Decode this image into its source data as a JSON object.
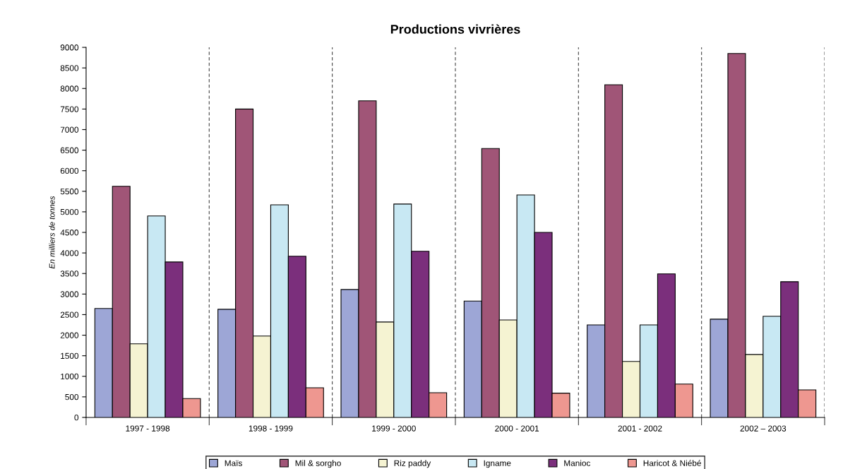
{
  "chart_data": {
    "type": "bar",
    "title": "Productions vivrières",
    "ylabel": "En milliers de tonnes",
    "categories": [
      "1997 - 1998",
      "1998 - 1999",
      "1999 - 2000",
      "2000 - 2001",
      "2001 - 2002",
      "2002 – 2003"
    ],
    "series": [
      {
        "name": "Maïs",
        "color": "#9da6d6",
        "values": [
          2650,
          2630,
          3110,
          2830,
          2250,
          2390
        ]
      },
      {
        "name": "Mil & sorgho",
        "color": "#a05577",
        "values": [
          5620,
          7500,
          7700,
          6540,
          8090,
          8850
        ]
      },
      {
        "name": "Riz paddy",
        "color": "#f5f3d2",
        "values": [
          1790,
          1980,
          2320,
          2370,
          1360,
          1530
        ]
      },
      {
        "name": "Igname",
        "color": "#c8e8f3",
        "values": [
          4900,
          5170,
          5190,
          5410,
          2250,
          2460
        ]
      },
      {
        "name": "Manioc",
        "color": "#7b2f7c",
        "values": [
          3780,
          3920,
          4040,
          4500,
          3490,
          3300
        ]
      },
      {
        "name": "Haricot & Niébé",
        "color": "#ee9790",
        "values": [
          460,
          720,
          600,
          590,
          810,
          670
        ]
      }
    ],
    "ylim": [
      0,
      9000
    ],
    "yticks": [
      0,
      500,
      1000,
      1500,
      2000,
      2500,
      3000,
      3500,
      4000,
      4500,
      5000,
      5500,
      6000,
      6500,
      7000,
      7500,
      8000,
      8500,
      9000
    ],
    "grid": "x",
    "legend": "bottom"
  }
}
